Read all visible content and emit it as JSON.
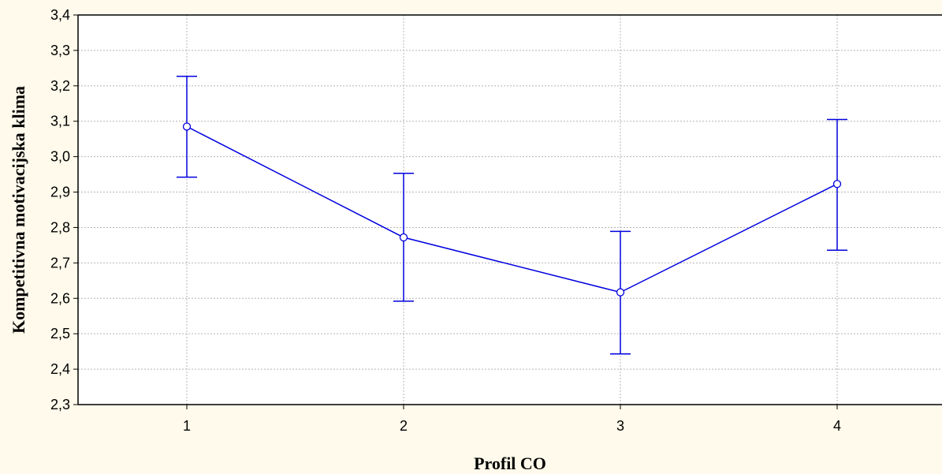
{
  "chart_data": {
    "type": "line",
    "title": "",
    "xlabel": "Profil CO",
    "ylabel": "Kompetitivna motivacijska klima",
    "categories": [
      "1",
      "2",
      "3",
      "4"
    ],
    "series": [
      {
        "values": [
          3.085,
          2.772,
          2.617,
          2.923
        ],
        "lower": [
          2.942,
          2.592,
          2.443,
          2.736
        ],
        "upper": [
          3.227,
          2.953,
          2.789,
          3.105
        ]
      }
    ],
    "ylim": [
      2.3,
      3.4
    ],
    "yticks": [
      "2,3",
      "2,4",
      "2,5",
      "2,6",
      "2,7",
      "2,8",
      "2,9",
      "3,0",
      "3,1",
      "3,2",
      "3,3",
      "3,4"
    ],
    "grid": true,
    "colors": {
      "line": "#0000dd",
      "marker_fill": "#ffffff",
      "grid": "#b4b4b4",
      "plot_background": "#ffffff",
      "page_background": "#fffaeb"
    }
  }
}
